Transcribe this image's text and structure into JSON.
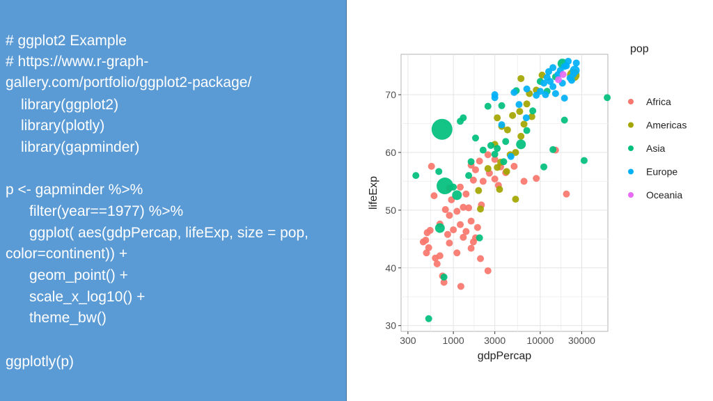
{
  "slide": {
    "code_lines": [
      "# ggplot2 Example",
      "# https://www.r-graph-",
      "gallery.com/portfolio/ggplot2-package/",
      "library(ggplot2)",
      "library(plotly)",
      "library(gapminder)",
      "p <- gapminder %>%",
      "filter(year==1977) %>%",
      "ggplot( aes(gdpPercap, lifeExp, size = pop,",
      "color=continent)) +",
      "geom_point() +",
      "scale_x_log10() +",
      "theme_bw()",
      "ggplotly(p)"
    ]
  },
  "chart_data": {
    "type": "scatter",
    "xlabel": "gdpPercap",
    "ylabel": "lifeExp",
    "x_scale": "log10",
    "xlim": [
      250,
      60000
    ],
    "ylim": [
      29,
      77
    ],
    "x_ticks": [
      300,
      1000,
      3000,
      10000,
      30000
    ],
    "x_tick_labels": [
      "300",
      "1000",
      "3000",
      "10000",
      "30000"
    ],
    "y_ticks": [
      30,
      40,
      50,
      60,
      70
    ],
    "y_tick_labels": [
      "30",
      "40",
      "50",
      "60",
      "70"
    ],
    "grid": true,
    "legend_title": "pop",
    "legend_position": "right",
    "series": [
      {
        "name": "Africa",
        "color": "#f8766d",
        "points": [
          [
            560,
            57.6
          ],
          [
            600,
            52.5
          ],
          [
            450,
            44.5
          ],
          [
            480,
            44.8
          ],
          [
            520,
            43.5
          ],
          [
            490,
            42.6
          ],
          [
            540,
            46.5
          ],
          [
            620,
            41.7
          ],
          [
            700,
            42.1
          ],
          [
            650,
            40.7
          ],
          [
            780,
            37.5
          ],
          [
            1220,
            36.8
          ],
          [
            2500,
            39.5
          ],
          [
            1700,
            44.5
          ],
          [
            2050,
            41.6
          ],
          [
            810,
            50.1
          ],
          [
            900,
            49.1
          ],
          [
            1000,
            46.6
          ],
          [
            1100,
            49.8
          ],
          [
            1200,
            47.5
          ],
          [
            1300,
            45.3
          ],
          [
            1500,
            50.4
          ],
          [
            1600,
            48.1
          ],
          [
            1800,
            45.2
          ],
          [
            1900,
            47.0
          ],
          [
            2100,
            50.9
          ],
          [
            1400,
            52.8
          ],
          [
            1700,
            55.2
          ],
          [
            2000,
            58.5
          ],
          [
            2500,
            59.6
          ],
          [
            2200,
            55.0
          ],
          [
            3000,
            58.8
          ],
          [
            3500,
            57.5
          ],
          [
            4000,
            56.5
          ],
          [
            6500,
            55.0
          ],
          [
            9000,
            55.5
          ],
          [
            1200,
            54.0
          ],
          [
            1300,
            50.5
          ],
          [
            900,
            53.8
          ],
          [
            1800,
            57.0
          ],
          [
            2600,
            56.4
          ],
          [
            3000,
            55.4
          ],
          [
            20000,
            52.8
          ],
          [
            900,
            44.3
          ],
          [
            1100,
            42.6
          ],
          [
            1400,
            46.3
          ],
          [
            1600,
            43.4
          ],
          [
            700,
            47.6
          ],
          [
            500,
            46.1
          ],
          [
            750,
            38.6
          ],
          [
            860,
            45.8
          ],
          [
            950,
            51.8
          ],
          [
            1600,
            57.8
          ],
          [
            3300,
            54.3
          ],
          [
            5000,
            57.6
          ],
          [
            15000,
            60.4
          ]
        ]
      },
      {
        "name": "Americas",
        "color": "#a3a500",
        "points": [
          [
            1950,
            53.4
          ],
          [
            2050,
            50.2
          ],
          [
            2500,
            57.2
          ],
          [
            3200,
            57.4
          ],
          [
            3000,
            61.4
          ],
          [
            3500,
            58.3
          ],
          [
            4100,
            56.7
          ],
          [
            4500,
            59.6
          ],
          [
            5200,
            60.0
          ],
          [
            6000,
            62.8
          ],
          [
            3600,
            64.5
          ],
          [
            4200,
            63.9
          ],
          [
            4800,
            66.4
          ],
          [
            5800,
            67.1
          ],
          [
            6500,
            64.9
          ],
          [
            7000,
            68.4
          ],
          [
            8000,
            66.2
          ],
          [
            7500,
            70.2
          ],
          [
            6000,
            72.8
          ],
          [
            9000,
            70.8
          ],
          [
            10500,
            73.4
          ],
          [
            24000,
            73.4
          ],
          [
            3400,
            53.6
          ],
          [
            5200,
            51.9
          ],
          [
            3200,
            66.0
          ]
        ]
      },
      {
        "name": "Asia",
        "color": "#00bf7d",
        "points": [
          [
            740,
            64.0
          ],
          [
            800,
            54.2
          ],
          [
            370,
            56.0
          ],
          [
            680,
            56.7
          ],
          [
            700,
            46.9
          ],
          [
            780,
            38.4
          ],
          [
            520,
            31.2
          ],
          [
            1000,
            54.0
          ],
          [
            1100,
            52.6
          ],
          [
            1300,
            66.0
          ],
          [
            1800,
            62.5
          ],
          [
            2700,
            61.2
          ],
          [
            3000,
            59.7
          ],
          [
            3200,
            60.7
          ],
          [
            3800,
            58.4
          ],
          [
            2200,
            60.4
          ],
          [
            1500,
            56.0
          ],
          [
            2000,
            45.2
          ],
          [
            6000,
            61.4
          ],
          [
            7000,
            63.8
          ],
          [
            11000,
            57.5
          ],
          [
            12000,
            70.6
          ],
          [
            15000,
            73.1
          ],
          [
            18000,
            75.4
          ],
          [
            10000,
            72.3
          ],
          [
            14000,
            60.5
          ],
          [
            19000,
            65.6
          ],
          [
            32000,
            58.6
          ],
          [
            59000,
            69.5
          ],
          [
            3600,
            68.1
          ],
          [
            5300,
            70.7
          ],
          [
            8200,
            67.2
          ],
          [
            4000,
            61.9
          ],
          [
            1600,
            58.4
          ],
          [
            1200,
            65.4
          ],
          [
            2500,
            68.0
          ]
        ]
      },
      {
        "name": "Europe",
        "color": "#00b0f6",
        "points": [
          [
            3000,
            69.5
          ],
          [
            3600,
            64.8
          ],
          [
            5000,
            70.4
          ],
          [
            5700,
            68.3
          ],
          [
            7000,
            71.0
          ],
          [
            9000,
            69.9
          ],
          [
            10000,
            70.6
          ],
          [
            11000,
            72.0
          ],
          [
            12000,
            73.0
          ],
          [
            13000,
            72.3
          ],
          [
            14000,
            71.4
          ],
          [
            15000,
            70.2
          ],
          [
            16000,
            73.5
          ],
          [
            17000,
            74.2
          ],
          [
            18000,
            72.0
          ],
          [
            19000,
            74.9
          ],
          [
            20000,
            75.0
          ],
          [
            21000,
            75.8
          ],
          [
            22000,
            72.9
          ],
          [
            23000,
            72.5
          ],
          [
            25000,
            74.2
          ],
          [
            26000,
            75.5
          ],
          [
            12500,
            74.0
          ],
          [
            14000,
            74.7
          ],
          [
            11500,
            70.0
          ],
          [
            24000,
            73.5
          ],
          [
            4600,
            59.3
          ],
          [
            19000,
            69.4
          ],
          [
            3000,
            70.0
          ],
          [
            6900,
            66.0
          ]
        ]
      },
      {
        "name": "Oceania",
        "color": "#e76bf3",
        "points": [
          [
            18300,
            73.5
          ],
          [
            16200,
            72.6
          ]
        ]
      }
    ],
    "large_points": [
      {
        "continent": "Asia",
        "x": 740,
        "y": 64.0,
        "pop_rank": "largest"
      },
      {
        "continent": "Asia",
        "x": 800,
        "y": 54.2,
        "pop_rank": "second"
      }
    ]
  }
}
